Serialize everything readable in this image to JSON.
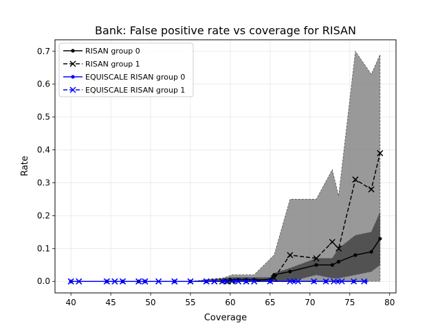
{
  "chart_data": {
    "type": "line",
    "title": "Bank: False positive rate vs coverage for RISAN",
    "xlabel": "Coverage",
    "ylabel": "Rate",
    "xlim": [
      38,
      80.8
    ],
    "ylim": [
      -0.035,
      0.735
    ],
    "xticks": [
      40,
      45,
      50,
      55,
      60,
      65,
      70,
      75,
      80
    ],
    "yticks": [
      0.0,
      0.1,
      0.2,
      0.3,
      0.4,
      0.5,
      0.6,
      0.7
    ],
    "ytick_labels": [
      "0.0",
      "0.1",
      "0.2",
      "0.3",
      "0.4",
      "0.5",
      "0.6",
      "0.7"
    ],
    "grid": true,
    "legend_position": "upper-left",
    "bands": [
      {
        "for_series": "RISAN group 1",
        "color": "#808080",
        "x": [
          40,
          41,
          44.5,
          45.5,
          46.5,
          48.5,
          49.3,
          51,
          53,
          55,
          57,
          58,
          59,
          59.7,
          60.2,
          61,
          62,
          63,
          65.5,
          67.5,
          70.8,
          72.8,
          73.6,
          75.7,
          77.7,
          78.8
        ],
        "lower": [
          0,
          0,
          0,
          0,
          0,
          0,
          0,
          0,
          0,
          0,
          0,
          0,
          0,
          0,
          0,
          0,
          0,
          0,
          0,
          0,
          0,
          0,
          0,
          0,
          0,
          0
        ],
        "upper": [
          0,
          0,
          0,
          0,
          0,
          0,
          0,
          0,
          0,
          0,
          0.005,
          0.008,
          0.01,
          0.015,
          0.02,
          0.02,
          0.02,
          0.02,
          0.08,
          0.25,
          0.25,
          0.34,
          0.26,
          0.7,
          0.63,
          0.69
        ]
      },
      {
        "for_series": "RISAN group 0",
        "color": "#404040",
        "x": [
          40,
          44.5,
          46.5,
          48.5,
          49.3,
          53,
          55,
          57,
          59,
          60,
          61,
          62,
          63,
          65,
          65.5,
          67.5,
          70.8,
          72.8,
          73.6,
          75.7,
          77.7,
          78.8
        ],
        "lower": [
          0,
          0,
          0,
          0,
          0,
          0,
          0,
          0,
          0,
          0,
          0,
          0,
          0,
          0,
          0,
          0,
          0.02,
          0.01,
          0.01,
          0.02,
          0.03,
          0.05
        ],
        "upper": [
          0,
          0,
          0,
          0,
          0,
          0,
          0,
          0.005,
          0.008,
          0.012,
          0.012,
          0.012,
          0.012,
          0.012,
          0.025,
          0.04,
          0.07,
          0.07,
          0.1,
          0.14,
          0.15,
          0.21
        ]
      }
    ],
    "series": [
      {
        "name": "RISAN group 0",
        "color": "#000000",
        "linestyle": "solid",
        "marker": "dot",
        "x": [
          40,
          44.5,
          46.5,
          48.5,
          49.3,
          53,
          55,
          57,
          59,
          60,
          61,
          62,
          63,
          65,
          65.5,
          67.5,
          70.8,
          72.8,
          73.6,
          75.7,
          77.7,
          78.8
        ],
        "y": [
          0,
          0,
          0,
          0,
          0,
          0,
          0,
          0,
          0,
          0.005,
          0.005,
          0.005,
          0.005,
          0.005,
          0.02,
          0.03,
          0.05,
          0.05,
          0.06,
          0.08,
          0.09,
          0.13
        ]
      },
      {
        "name": "RISAN group 1",
        "color": "#000000",
        "linestyle": "dashed",
        "marker": "x",
        "x": [
          40,
          41,
          44.5,
          45.5,
          46.5,
          48.5,
          49.3,
          51,
          53,
          55,
          57,
          58,
          59,
          59.7,
          60.2,
          61,
          62,
          63,
          65.5,
          67.5,
          70.8,
          72.8,
          73.6,
          75.7,
          77.7,
          78.8
        ],
        "y": [
          0,
          0,
          0,
          0,
          0,
          0,
          0,
          0,
          0,
          0,
          0,
          0,
          0,
          0,
          0,
          0,
          0,
          0,
          0.01,
          0.08,
          0.07,
          0.12,
          0.1,
          0.31,
          0.28,
          0.39
        ]
      },
      {
        "name": "EQUISCALE RISAN group 0",
        "color": "#0000ff",
        "linestyle": "solid",
        "marker": "dot",
        "x": [
          40,
          44.5,
          46.5,
          49.3,
          53,
          57,
          59,
          60.5,
          62,
          65,
          68,
          70.5,
          72,
          73.5,
          75.5,
          77
        ],
        "y": [
          0,
          0,
          0,
          0,
          0,
          0,
          0,
          0,
          0,
          0,
          0,
          0,
          0,
          0,
          0,
          0
        ]
      },
      {
        "name": "EQUISCALE RISAN group 1",
        "color": "#0000ff",
        "linestyle": "dashed",
        "marker": "x",
        "x": [
          40,
          41,
          44.5,
          45.5,
          46.5,
          48.5,
          49.3,
          51,
          53,
          55,
          57,
          58,
          59.5,
          61,
          62,
          63,
          65,
          67.5,
          68.5,
          70.5,
          72,
          73,
          74,
          75.5,
          76.8
        ],
        "y": [
          0,
          0,
          0,
          0,
          0,
          0,
          0,
          0,
          0,
          0,
          0,
          0,
          0,
          0,
          0,
          0,
          0,
          0,
          0,
          0,
          0,
          0,
          0,
          0,
          0
        ]
      }
    ]
  }
}
